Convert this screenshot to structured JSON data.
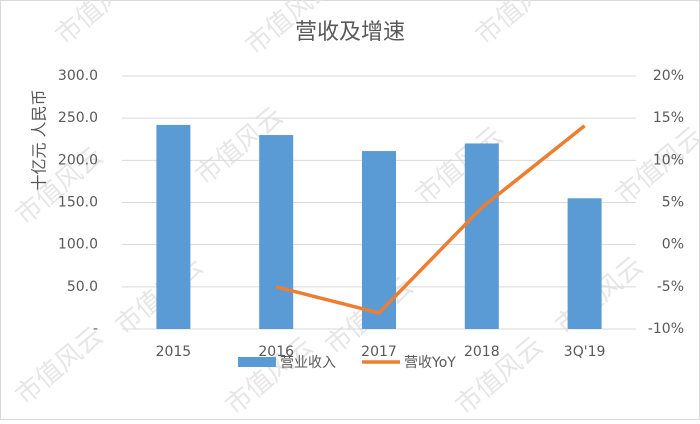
{
  "chart_data": {
    "type": "bar_line",
    "title": "营收及增速",
    "y_label": "十亿元 人民币",
    "watermark": "市值风云",
    "categories": [
      "2015",
      "2016",
      "2017",
      "2018",
      "3Q'19"
    ],
    "series": [
      {
        "name": "营业收入",
        "type": "bar",
        "color": "#5b9bd5",
        "values": [
          242,
          230,
          211,
          220,
          155
        ]
      },
      {
        "name": "营收YoY",
        "type": "line",
        "axis": "y2",
        "color": "#ed7d31",
        "values": [
          null,
          -5,
          -8.1,
          4.4,
          14.1
        ]
      }
    ],
    "ylim": [
      0,
      300
    ],
    "yticks": [
      {
        "value": 0,
        "label": "-"
      },
      {
        "value": 50,
        "label": "50.0"
      },
      {
        "value": 100,
        "label": "100.0"
      },
      {
        "value": 150,
        "label": "150.0"
      },
      {
        "value": 200,
        "label": "200.0"
      },
      {
        "value": 250,
        "label": "250.0"
      },
      {
        "value": 300,
        "label": "300.0"
      }
    ],
    "y2lim": [
      -10,
      20
    ],
    "y2ticks": [
      {
        "value": -10,
        "label": "-10%"
      },
      {
        "value": -5,
        "label": "-5%"
      },
      {
        "value": 0,
        "label": "0%"
      },
      {
        "value": 5,
        "label": "5%"
      },
      {
        "value": 10,
        "label": "10%"
      },
      {
        "value": 15,
        "label": "15%"
      },
      {
        "value": 20,
        "label": "20%"
      }
    ],
    "grid": true,
    "legend": "bottom"
  }
}
